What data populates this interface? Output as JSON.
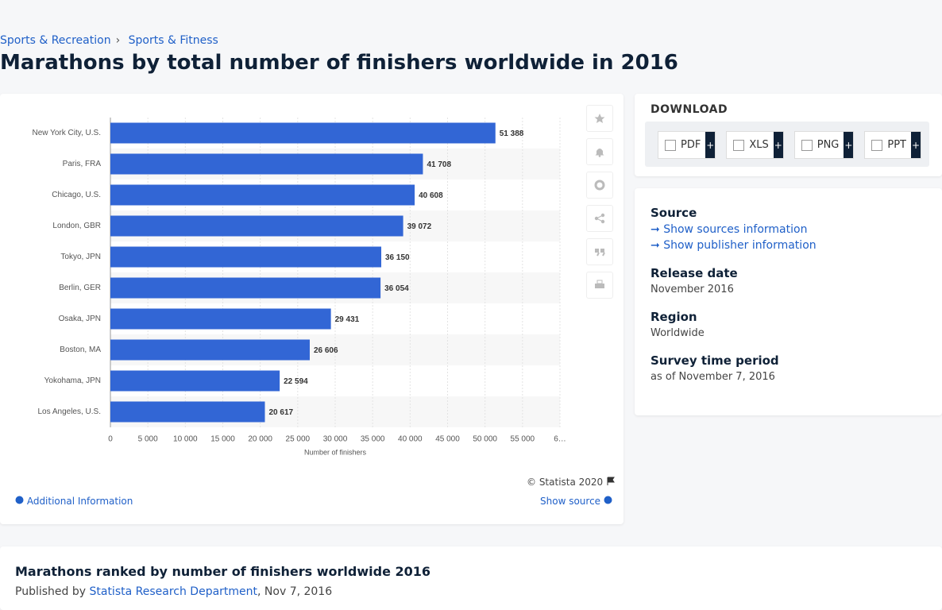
{
  "breadcrumbs": [
    "Sports & Recreation",
    "Sports & Fitness"
  ],
  "breadcrumb_separator": "›",
  "title": "Marathons by total number of finishers worldwide in 2016",
  "chart_data": {
    "type": "bar",
    "orientation": "horizontal",
    "categories": [
      "New York City, U.S.",
      "Paris, FRA",
      "Chicago, U.S.",
      "London, GBR",
      "Tokyo, JPN",
      "Berlin, GER",
      "Osaka, JPN",
      "Boston, MA",
      "Yokohama, JPN",
      "Los Angeles, U.S."
    ],
    "values": [
      51388,
      41708,
      40608,
      39072,
      36150,
      36054,
      29431,
      26606,
      22594,
      20617
    ],
    "value_labels": [
      "51 388",
      "41 708",
      "40 608",
      "39 072",
      "36 150",
      "36 054",
      "29 431",
      "26 606",
      "22 594",
      "20 617"
    ],
    "color": "#3266d5",
    "xlabel": "Number of finishers",
    "xlim": [
      0,
      60000
    ],
    "xticks": [
      0,
      {
        "value": 5000,
        "label": "5 000"
      },
      {
        "value": 10000,
        "label": "10 000"
      },
      {
        "value": 15000,
        "label": "15 000"
      },
      {
        "value": 20000,
        "label": "20 000"
      },
      {
        "value": 25000,
        "label": "25 000"
      },
      {
        "value": 30000,
        "label": "30 000"
      },
      {
        "value": 35000,
        "label": "35 000"
      },
      {
        "value": 40000,
        "label": "40 000"
      },
      {
        "value": 45000,
        "label": "45 000"
      },
      {
        "value": 50000,
        "label": "50 000"
      },
      {
        "value": 55000,
        "label": "55 000"
      },
      {
        "value": 60000,
        "label": "6…"
      }
    ],
    "grid": true
  },
  "chart_footer": {
    "copyright": "© Statista 2020",
    "additional_info": "Additional Information",
    "show_source": "Show source"
  },
  "download": {
    "title": "DOWNLOAD",
    "formats": [
      "PDF",
      "XLS",
      "PNG",
      "PPT"
    ],
    "plus": "+"
  },
  "details": {
    "source_label": "Source",
    "links": [
      "Show sources information",
      "Show publisher information"
    ],
    "release_date_label": "Release date",
    "release_date": "November 2016",
    "region_label": "Region",
    "region": "Worldwide",
    "survey_label": "Survey time period",
    "survey": "as of November 7, 2016"
  },
  "footer": {
    "heading": "Marathons ranked by number of finishers worldwide 2016",
    "published_by": "Published by",
    "publisher": "Statista Research Department",
    "date": ", Nov 7, 2016"
  }
}
